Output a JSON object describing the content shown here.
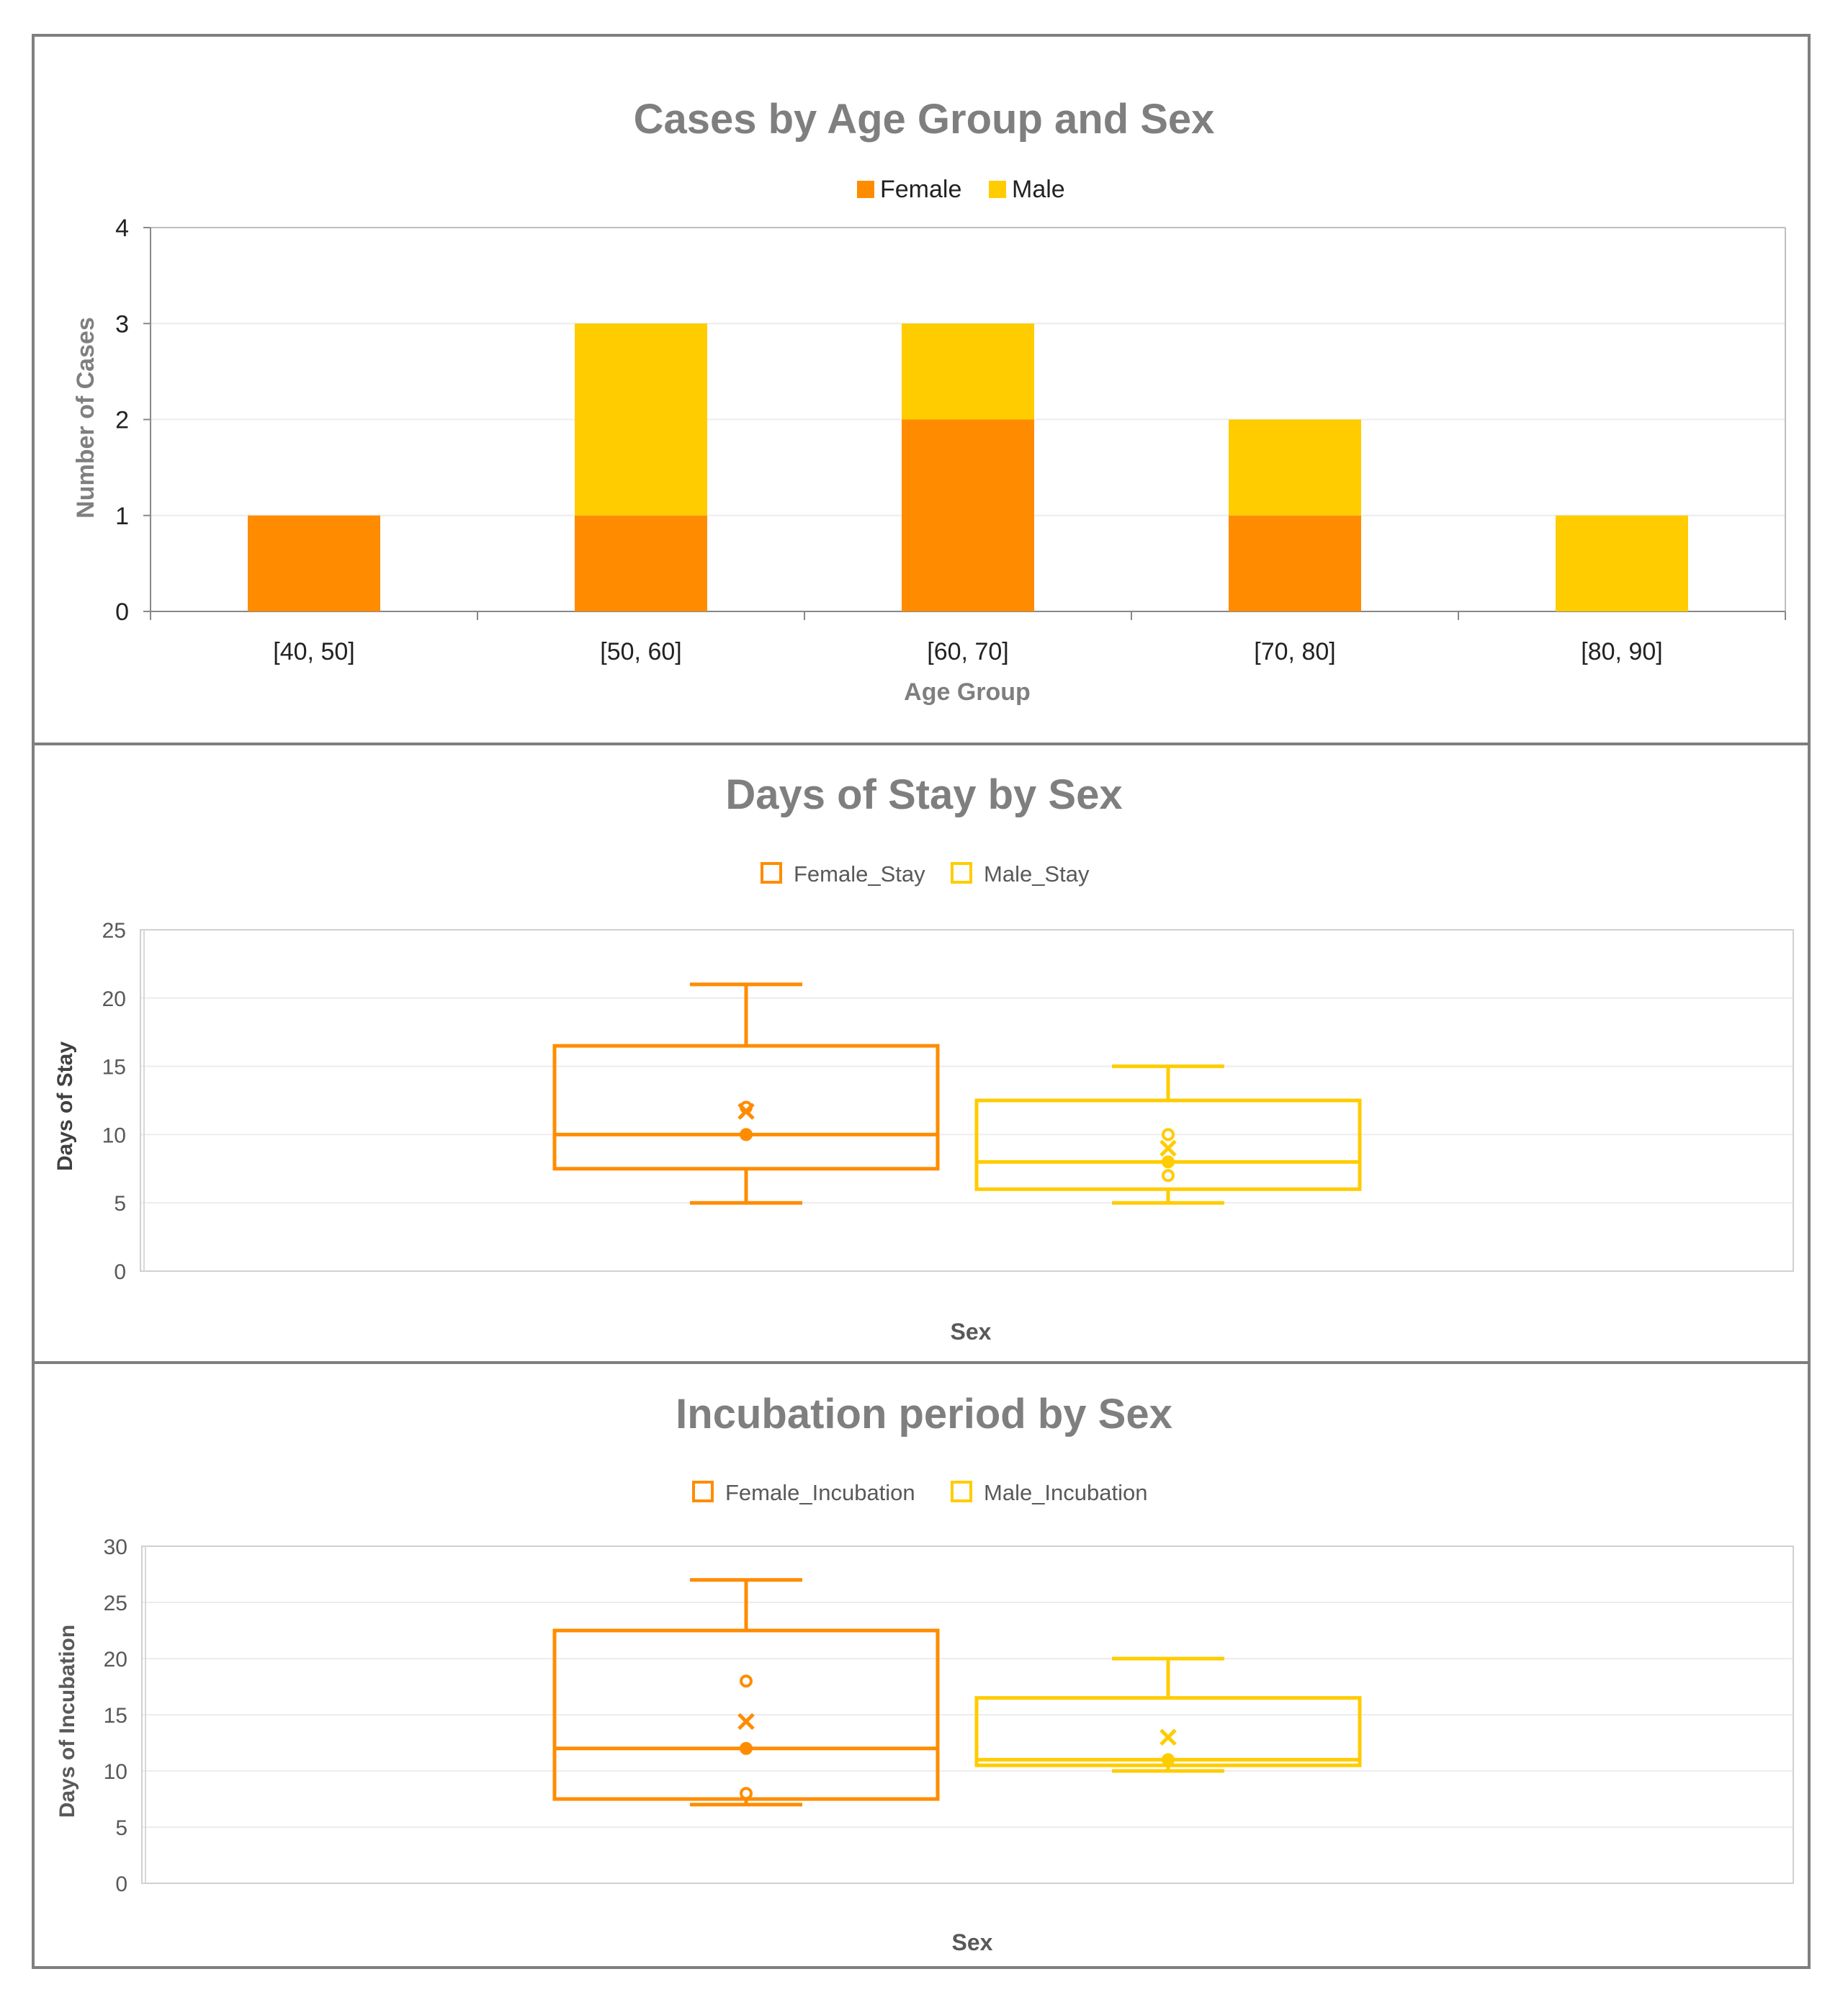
{
  "colors": {
    "female": "#ff8c00",
    "male": "#ffcc00",
    "title": "#7f7f7f",
    "axis_text": "#595959",
    "grid": "#ececec",
    "frame": "#7f7f7f"
  },
  "chart_data": [
    {
      "type": "bar",
      "stacked": true,
      "title": "Cases by Age Group and Sex",
      "xlabel": "Age Group",
      "ylabel": "Number of Cases",
      "categories": [
        "[40, 50]",
        "[50, 60]",
        "[60, 70]",
        "[70, 80]",
        "[80, 90]"
      ],
      "series": [
        {
          "name": "Female",
          "values": [
            1,
            1,
            2,
            1,
            0
          ]
        },
        {
          "name": "Male",
          "values": [
            0,
            2,
            1,
            1,
            1
          ]
        }
      ],
      "ylim": [
        0,
        4
      ],
      "yticks": [
        0,
        1,
        2,
        3,
        4
      ],
      "legend": "top-center"
    },
    {
      "type": "box",
      "title": "Days of Stay by Sex",
      "xlabel": "Sex",
      "ylabel": "Days of Stay",
      "ylim": [
        0,
        25
      ],
      "yticks": [
        0,
        5,
        10,
        15,
        20,
        25
      ],
      "legend": "top-center",
      "series": [
        {
          "name": "Female_Stay",
          "whisker_low": 5,
          "q1": 7.5,
          "median": 10,
          "q3": 16.5,
          "whisker_high": 21,
          "mean": 11.7,
          "points": [
            10,
            12
          ]
        },
        {
          "name": "Male_Stay",
          "whisker_low": 5,
          "q1": 6,
          "median": 8,
          "q3": 12.5,
          "whisker_high": 15,
          "mean": 9,
          "points": [
            7,
            8,
            10
          ]
        }
      ]
    },
    {
      "type": "box",
      "title": "Incubation period by Sex",
      "xlabel": "Sex",
      "ylabel": "Days of Incubation",
      "ylim": [
        0,
        30
      ],
      "yticks": [
        0,
        5,
        10,
        15,
        20,
        25,
        30
      ],
      "legend": "top-center",
      "series": [
        {
          "name": "Female_Incubation",
          "whisker_low": 7,
          "q1": 7.5,
          "median": 12,
          "q3": 22.5,
          "whisker_high": 27,
          "mean": 14.4,
          "points": [
            8,
            12,
            18
          ]
        },
        {
          "name": "Male_Incubation",
          "whisker_low": 10,
          "q1": 10.5,
          "median": 11,
          "q3": 16.5,
          "whisker_high": 20,
          "mean": 13,
          "points": [
            11
          ]
        }
      ]
    }
  ]
}
